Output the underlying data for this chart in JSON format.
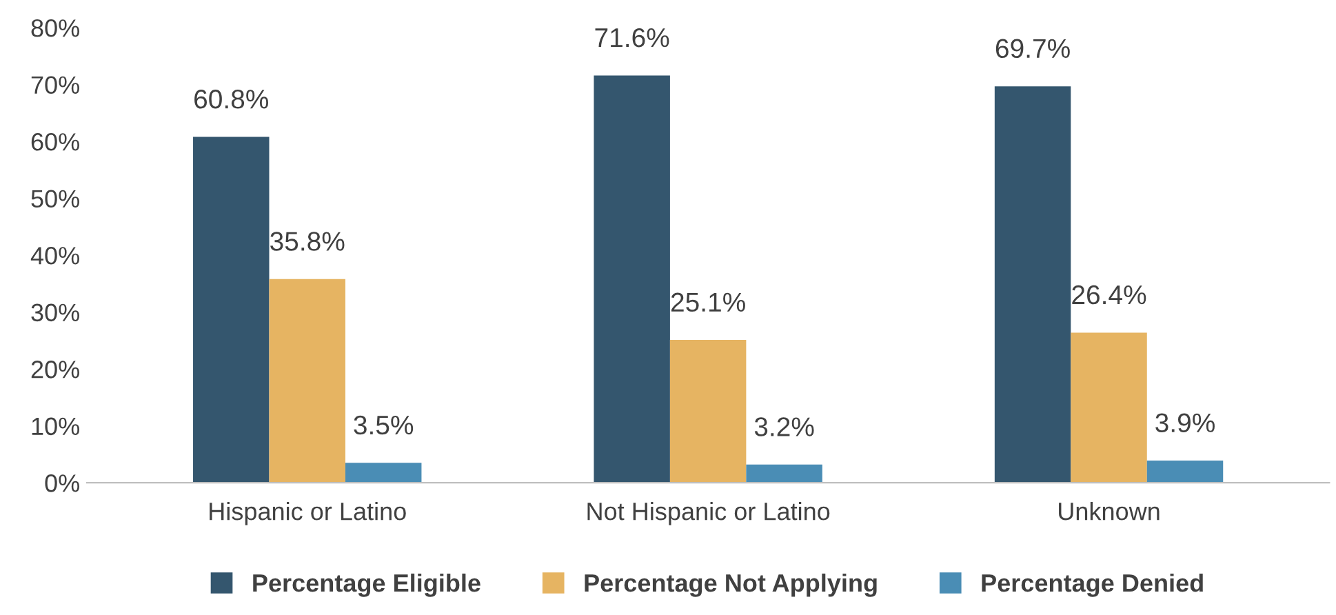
{
  "chart_data": {
    "type": "bar",
    "categories": [
      "Hispanic or Latino",
      "Not Hispanic or Latino",
      "Unknown"
    ],
    "series": [
      {
        "name": "Percentage Eligible",
        "color": "#34566e",
        "values": [
          60.8,
          71.6,
          69.7
        ],
        "value_labels": [
          "60.8%",
          "71.6%",
          "69.7%"
        ]
      },
      {
        "name": "Percentage Not Applying",
        "color": "#e6b462",
        "values": [
          35.8,
          25.1,
          26.4
        ],
        "value_labels": [
          "35.8%",
          "25.1%",
          "26.4%"
        ]
      },
      {
        "name": "Percentage Denied",
        "color": "#4a8db5",
        "values": [
          3.5,
          3.2,
          3.9
        ],
        "value_labels": [
          "3.5%",
          "3.2%",
          "3.9%"
        ]
      }
    ],
    "ylim": [
      0,
      80
    ],
    "yticks": [
      {
        "value": 0,
        "label": "0%"
      },
      {
        "value": 10,
        "label": "10%"
      },
      {
        "value": 20,
        "label": "20%"
      },
      {
        "value": 30,
        "label": "30%"
      },
      {
        "value": 40,
        "label": "40%"
      },
      {
        "value": 50,
        "label": "50%"
      },
      {
        "value": 60,
        "label": "60%"
      },
      {
        "value": 70,
        "label": "70%"
      },
      {
        "value": 80,
        "label": "80%"
      }
    ],
    "grid": false,
    "legend": "bottom"
  }
}
